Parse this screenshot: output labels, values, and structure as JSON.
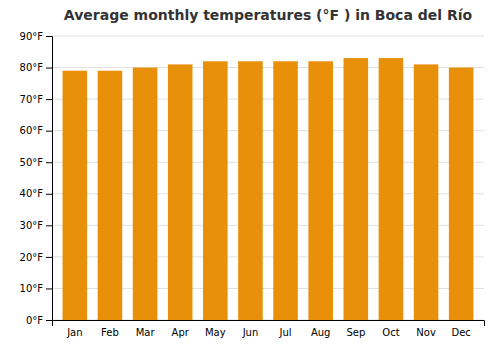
{
  "chart_data": {
    "type": "bar",
    "title": "Average monthly temperatures (°F ) in Boca del Río",
    "categories": [
      "Jan",
      "Feb",
      "Mar",
      "Apr",
      "May",
      "Jun",
      "Jul",
      "Aug",
      "Sep",
      "Oct",
      "Nov",
      "Dec"
    ],
    "values": [
      79,
      79,
      80,
      81,
      82,
      82,
      82,
      82,
      83,
      83,
      81,
      80
    ],
    "color": "#E8900A",
    "ylim": [
      0,
      90
    ],
    "yticks": [
      {
        "value": 0,
        "label": "0°F"
      },
      {
        "value": 10,
        "label": "10°F"
      },
      {
        "value": 20,
        "label": "20°F"
      },
      {
        "value": 30,
        "label": "30°F"
      },
      {
        "value": 40,
        "label": "40°F"
      },
      {
        "value": 50,
        "label": "50°F"
      },
      {
        "value": 60,
        "label": "60°F"
      },
      {
        "value": 70,
        "label": "70°F"
      },
      {
        "value": 80,
        "label": "80°F"
      },
      {
        "value": 90,
        "label": "90°F"
      }
    ],
    "grid": true
  }
}
